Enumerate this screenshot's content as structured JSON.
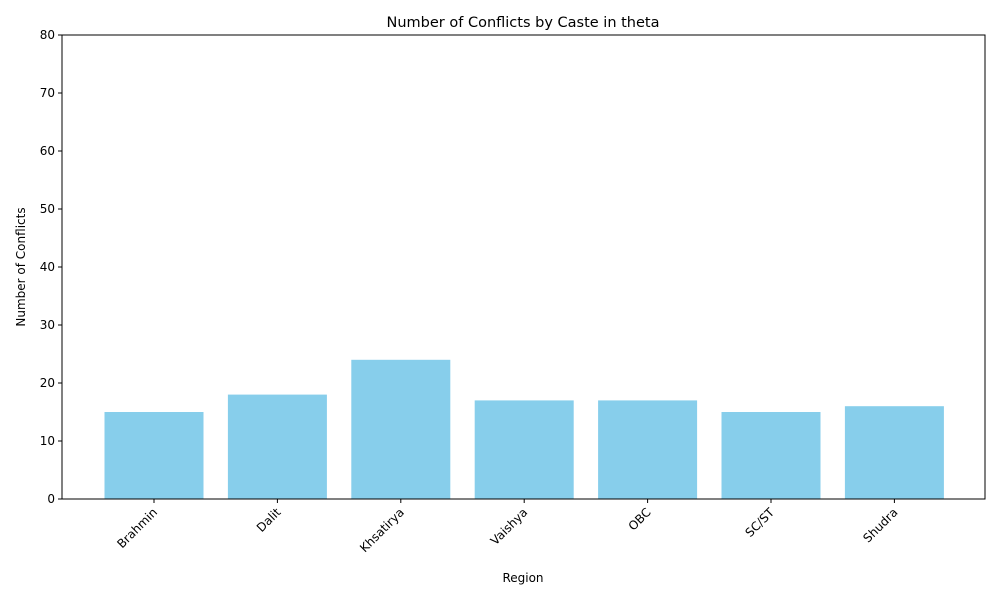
{
  "chart_data": {
    "type": "bar",
    "title": "Number of Conflicts by Caste in theta",
    "xlabel": "Region",
    "ylabel": "Number of Conflicts",
    "categories": [
      "Brahmin",
      "Dalit",
      "Khsatirya",
      "Vaishya",
      "OBC",
      "SC/ST",
      "Shudra"
    ],
    "values": [
      15,
      18,
      24,
      17,
      17,
      15,
      16
    ],
    "ylim": [
      0,
      80
    ],
    "yticks": [
      0,
      10,
      20,
      30,
      40,
      50,
      60,
      70,
      80
    ],
    "bar_color": "#87CEEB",
    "grid": false,
    "legend": "none"
  }
}
